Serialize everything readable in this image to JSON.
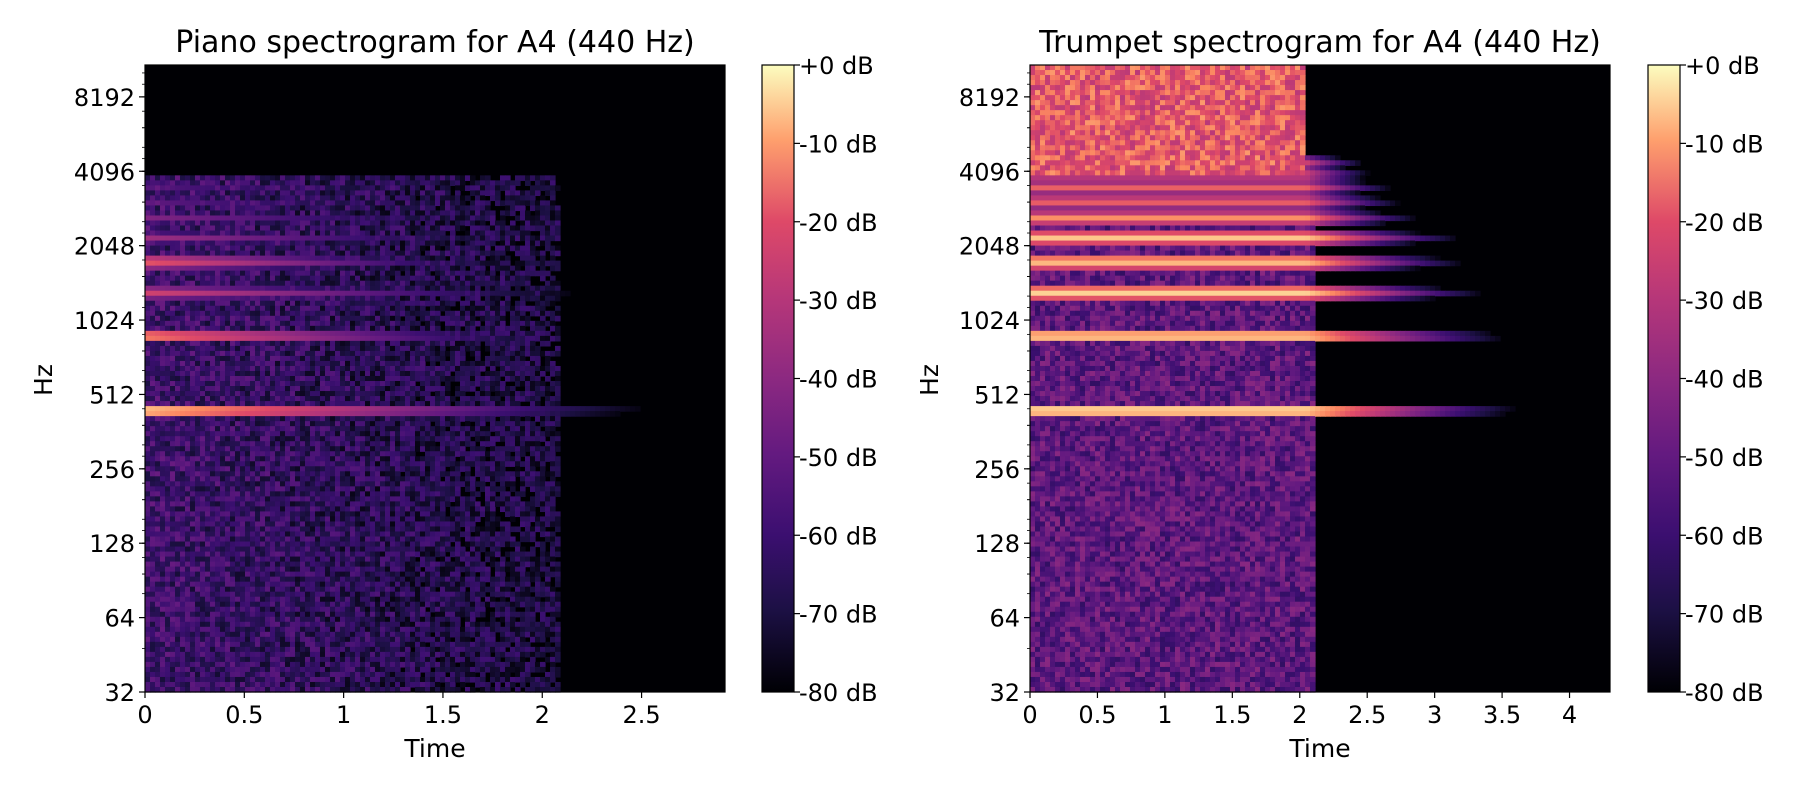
{
  "chart_data": [
    {
      "type": "heatmap",
      "title": "Piano spectrogram for A4 (440 Hz)",
      "xlabel": "Time",
      "ylabel": "Hz",
      "xlim": [
        0,
        2.92
      ],
      "ylim_hz": [
        32,
        11025
      ],
      "y_scale": "log2",
      "x_ticks": [
        0,
        0.5,
        1,
        1.5,
        2,
        2.5
      ],
      "x_tick_labels": [
        "0",
        "0.5",
        "1",
        "1.5",
        "2",
        "2.5"
      ],
      "y_ticks": [
        32,
        64,
        128,
        256,
        512,
        1024,
        2048,
        4096,
        8192
      ],
      "y_tick_labels": [
        "32",
        "64",
        "128",
        "256",
        "512",
        "1024",
        "2048",
        "4096",
        "8192"
      ],
      "colorbar": {
        "range_db": [
          -80,
          0
        ],
        "ticks": [
          0,
          -10,
          -20,
          -30,
          -40,
          -50,
          -60,
          -70,
          -80
        ],
        "tick_labels": [
          "+0 dB",
          "-10 dB",
          "-20 dB",
          "-30 dB",
          "-40 dB",
          "-50 dB",
          "-60 dB",
          "-70 dB",
          "-80 dB"
        ],
        "colormap": "magma"
      },
      "harmonic_bands": [
        {
          "freq_hz": 440,
          "start_db": -2,
          "decay_end": 2.85
        },
        {
          "freq_hz": 880,
          "start_db": -12,
          "decay_end": 2.4
        },
        {
          "freq_hz": 1320,
          "start_db": -28,
          "decay_end": 2.3
        },
        {
          "freq_hz": 1760,
          "start_db": -20,
          "decay_end": 2.05
        },
        {
          "freq_hz": 2200,
          "start_db": -40,
          "decay_end": 1.95
        },
        {
          "freq_hz": 2640,
          "start_db": -45,
          "decay_end": 1.9
        },
        {
          "freq_hz": 3080,
          "start_db": -50,
          "decay_end": 1.8
        },
        {
          "freq_hz": 3520,
          "start_db": -55,
          "decay_end": 1.65
        }
      ],
      "noise_end_time": 2.1,
      "noise_level_db": -62
    },
    {
      "type": "heatmap",
      "title": "Trumpet spectrogram for A4 (440 Hz)",
      "xlabel": "Time",
      "ylabel": "Hz",
      "xlim": [
        0,
        4.3
      ],
      "ylim_hz": [
        32,
        11025
      ],
      "y_scale": "log2",
      "x_ticks": [
        0,
        0.5,
        1,
        1.5,
        2,
        2.5,
        3,
        3.5,
        4
      ],
      "x_tick_labels": [
        "0",
        "0.5",
        "1",
        "1.5",
        "2",
        "2.5",
        "3",
        "3.5",
        "4"
      ],
      "y_ticks": [
        32,
        64,
        128,
        256,
        512,
        1024,
        2048,
        4096,
        8192
      ],
      "y_tick_labels": [
        "32",
        "64",
        "128",
        "256",
        "512",
        "1024",
        "2048",
        "4096",
        "8192"
      ],
      "colorbar": {
        "range_db": [
          -80,
          0
        ],
        "ticks": [
          0,
          -10,
          -20,
          -30,
          -40,
          -50,
          -60,
          -70,
          -80
        ],
        "tick_labels": [
          "+0 dB",
          "-10 dB",
          "-20 dB",
          "-30 dB",
          "-40 dB",
          "-50 dB",
          "-60 dB",
          "-70 dB",
          "-80 dB"
        ],
        "colormap": "magma"
      },
      "sustain_end_time": 2.05,
      "harmonic_bands": [
        {
          "freq_hz": 440,
          "start_db": 0,
          "decay_end": 3.8
        },
        {
          "freq_hz": 880,
          "start_db": -3,
          "decay_end": 3.7
        },
        {
          "freq_hz": 1320,
          "start_db": -5,
          "decay_end": 3.4
        },
        {
          "freq_hz": 1760,
          "start_db": -6,
          "decay_end": 3.3
        },
        {
          "freq_hz": 2200,
          "start_db": -8,
          "decay_end": 3.2
        },
        {
          "freq_hz": 2640,
          "start_db": -15,
          "decay_end": 2.9
        },
        {
          "freq_hz": 3080,
          "start_db": -20,
          "decay_end": 2.8
        },
        {
          "freq_hz": 3520,
          "start_db": -22,
          "decay_end": 2.7
        },
        {
          "freq_hz": 3960,
          "start_db": -25,
          "decay_end": 2.6
        },
        {
          "freq_hz": 4400,
          "start_db": -28,
          "decay_end": 2.5
        }
      ],
      "noise_level_db": -55
    }
  ]
}
